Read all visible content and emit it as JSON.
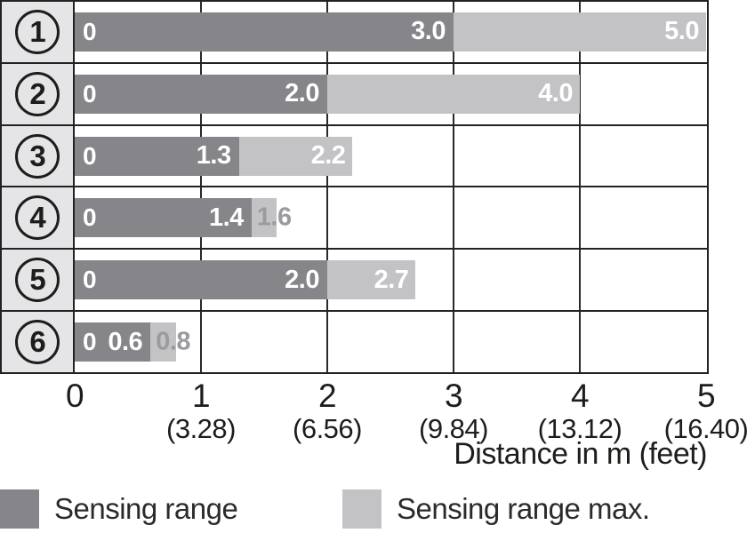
{
  "chart_data": {
    "type": "bar",
    "orientation": "horizontal",
    "xlabel": "Distance in m (feet)",
    "xlim": [
      0,
      5
    ],
    "grid": true,
    "legend_position": "bottom",
    "categories": [
      "1",
      "2",
      "3",
      "4",
      "5",
      "6"
    ],
    "series": [
      {
        "name": "Sensing range",
        "color": "#85858a",
        "values": [
          3.0,
          2.0,
          1.3,
          1.4,
          2.0,
          0.6
        ]
      },
      {
        "name": "Sensing range max.",
        "color": "#c3c3c5",
        "values": [
          5.0,
          4.0,
          2.2,
          1.6,
          2.7,
          0.8
        ]
      }
    ],
    "rows": [
      {
        "num": "1",
        "zero_label": "0",
        "sensing": 3.0,
        "sensing_label": "3.0",
        "max": 5.0,
        "max_label": "5.0",
        "max_label_placement": "inside"
      },
      {
        "num": "2",
        "zero_label": "0",
        "sensing": 2.0,
        "sensing_label": "2.0",
        "max": 4.0,
        "max_label": "4.0",
        "max_label_placement": "inside"
      },
      {
        "num": "3",
        "zero_label": "0",
        "sensing": 1.3,
        "sensing_label": "1.3",
        "max": 2.2,
        "max_label": "2.2",
        "max_label_placement": "inside"
      },
      {
        "num": "4",
        "zero_label": "0",
        "sensing": 1.4,
        "sensing_label": "1.4",
        "max": 1.6,
        "max_label": "1.6",
        "max_label_placement": "outside"
      },
      {
        "num": "5",
        "zero_label": "0",
        "sensing": 2.0,
        "sensing_label": "2.0",
        "max": 2.7,
        "max_label": "2.7",
        "max_label_placement": "inside"
      },
      {
        "num": "6",
        "zero_label": "0",
        "sensing": 0.6,
        "sensing_label": "0.6",
        "max": 0.8,
        "max_label": "0.8",
        "max_label_placement": "outside"
      }
    ],
    "xticks": [
      {
        "m": "0",
        "feet": ""
      },
      {
        "m": "1",
        "feet": "(3.28)"
      },
      {
        "m": "2",
        "feet": "(6.56)"
      },
      {
        "m": "3",
        "feet": "(9.84)"
      },
      {
        "m": "4",
        "feet": "(13.12)"
      },
      {
        "m": "5",
        "feet": "(16.40)"
      }
    ]
  },
  "legend": {
    "items": [
      {
        "label": "Sensing range",
        "color": "#85858a"
      },
      {
        "label": "Sensing range max.",
        "color": "#c3c3c5"
      }
    ]
  },
  "colors": {
    "sensing": "#85858a",
    "sensing_max": "#c3c3c5",
    "row_header_bg": "#e5e5e7",
    "border": "#222222",
    "inside_label": "#ffffff",
    "outside_label": "#9b9b9f",
    "text": "#1d1d1b"
  }
}
